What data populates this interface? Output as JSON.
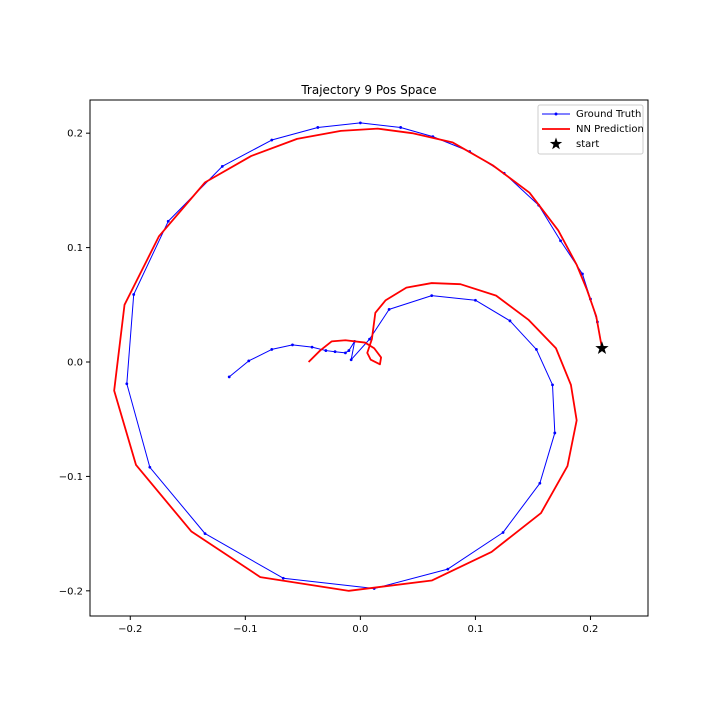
{
  "chart_data": {
    "type": "line",
    "title": "Trajectory 9 Pos Space",
    "xlabel": "",
    "ylabel": "",
    "xlim": [
      -0.235,
      0.25
    ],
    "ylim": [
      -0.222,
      0.229
    ],
    "xticks": [
      -0.2,
      -0.1,
      0.0,
      0.1,
      0.2
    ],
    "xtick_labels": [
      "−0.2",
      "−0.1",
      "0.0",
      "0.1",
      "0.2"
    ],
    "yticks": [
      -0.2,
      -0.1,
      0.0,
      0.1,
      0.2
    ],
    "ytick_labels": [
      "−0.2",
      "−0.1",
      "0.0",
      "0.1",
      "0.2"
    ],
    "grid": false,
    "legend_position": "top-right",
    "series": [
      {
        "name": "Ground Truth",
        "color": "#0000ff",
        "marker": "dot",
        "points": [
          [
            0.21,
            0.012
          ],
          [
            0.206,
            0.035
          ],
          [
            0.2,
            0.055
          ],
          [
            0.193,
            0.077
          ],
          [
            0.174,
            0.106
          ],
          [
            0.155,
            0.137
          ],
          [
            0.125,
            0.165
          ],
          [
            0.095,
            0.184
          ],
          [
            0.063,
            0.197
          ],
          [
            0.035,
            0.205
          ],
          [
            0.0,
            0.209
          ],
          [
            -0.037,
            0.205
          ],
          [
            -0.077,
            0.194
          ],
          [
            -0.12,
            0.171
          ],
          [
            -0.167,
            0.123
          ],
          [
            -0.197,
            0.059
          ],
          [
            -0.203,
            -0.019
          ],
          [
            -0.183,
            -0.092
          ],
          [
            -0.135,
            -0.15
          ],
          [
            -0.067,
            -0.189
          ],
          [
            0.012,
            -0.198
          ],
          [
            0.076,
            -0.181
          ],
          [
            0.124,
            -0.149
          ],
          [
            0.156,
            -0.106
          ],
          [
            0.169,
            -0.062
          ],
          [
            0.167,
            -0.02
          ],
          [
            0.153,
            0.011
          ],
          [
            0.13,
            0.036
          ],
          [
            0.1,
            0.054
          ],
          [
            0.062,
            0.058
          ],
          [
            0.025,
            0.046
          ],
          [
            0.008,
            0.02
          ],
          [
            -0.008,
            0.002
          ],
          [
            -0.005,
            0.018
          ],
          [
            -0.01,
            0.01
          ],
          [
            -0.013,
            0.008
          ],
          [
            -0.022,
            0.009
          ],
          [
            -0.03,
            0.01
          ],
          [
            -0.042,
            0.013
          ],
          [
            -0.059,
            0.015
          ],
          [
            -0.077,
            0.011
          ],
          [
            -0.097,
            0.001
          ],
          [
            -0.114,
            -0.013
          ]
        ]
      },
      {
        "name": "NN Prediction",
        "color": "#ff0000",
        "marker": "none",
        "points": [
          [
            0.21,
            0.012
          ],
          [
            0.205,
            0.04
          ],
          [
            0.197,
            0.063
          ],
          [
            0.188,
            0.085
          ],
          [
            0.172,
            0.115
          ],
          [
            0.147,
            0.148
          ],
          [
            0.115,
            0.172
          ],
          [
            0.08,
            0.192
          ],
          [
            0.045,
            0.2
          ],
          [
            0.015,
            0.204
          ],
          [
            -0.017,
            0.202
          ],
          [
            -0.055,
            0.195
          ],
          [
            -0.095,
            0.18
          ],
          [
            -0.135,
            0.157
          ],
          [
            -0.175,
            0.11
          ],
          [
            -0.205,
            0.05
          ],
          [
            -0.214,
            -0.025
          ],
          [
            -0.195,
            -0.09
          ],
          [
            -0.147,
            -0.148
          ],
          [
            -0.087,
            -0.188
          ],
          [
            -0.01,
            -0.2
          ],
          [
            0.062,
            -0.191
          ],
          [
            0.114,
            -0.166
          ],
          [
            0.157,
            -0.132
          ],
          [
            0.18,
            -0.091
          ],
          [
            0.188,
            -0.051
          ],
          [
            0.183,
            -0.02
          ],
          [
            0.17,
            0.012
          ],
          [
            0.146,
            0.037
          ],
          [
            0.118,
            0.058
          ],
          [
            0.087,
            0.068
          ],
          [
            0.062,
            0.069
          ],
          [
            0.04,
            0.065
          ],
          [
            0.022,
            0.054
          ],
          [
            0.013,
            0.043
          ],
          [
            0.01,
            0.02
          ],
          [
            0.006,
            0.008
          ],
          [
            0.009,
            0.002
          ],
          [
            0.017,
            -0.002
          ],
          [
            0.018,
            0.004
          ],
          [
            0.012,
            0.012
          ],
          [
            0.004,
            0.017
          ],
          [
            -0.013,
            0.019
          ],
          [
            -0.025,
            0.018
          ],
          [
            -0.035,
            0.01
          ],
          [
            -0.045,
            0.0
          ]
        ]
      }
    ],
    "markers": [
      {
        "name": "start",
        "symbol": "star",
        "color": "#000000",
        "point": [
          0.21,
          0.012
        ]
      }
    ]
  }
}
